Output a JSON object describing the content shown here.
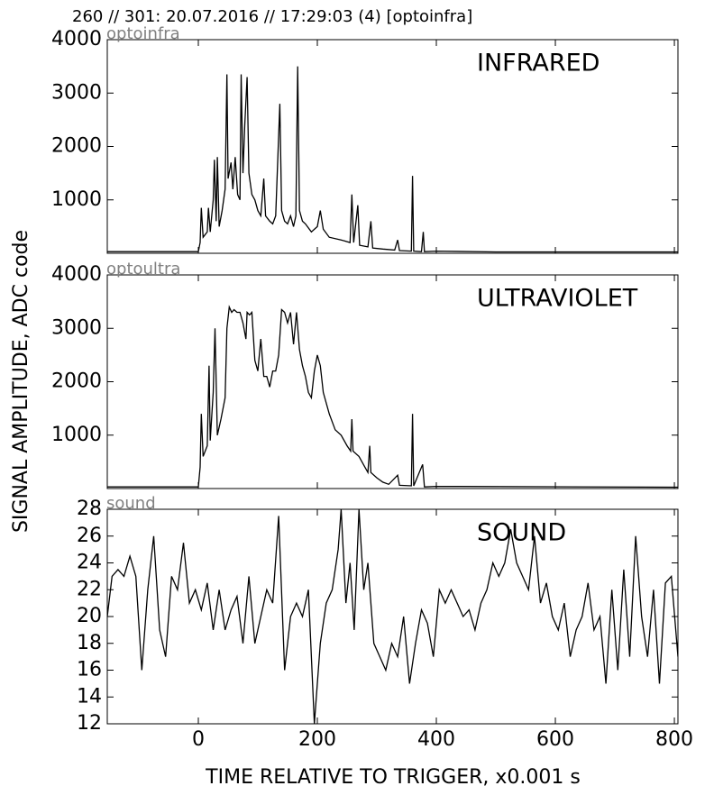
{
  "title": "260 // 301:   20.07.2016 // 17:29:03 (4)  [optoinfra]",
  "ylabel": "SIGNAL AMPLITUDE,  ADC code",
  "xlabel": "TIME RELATIVE TO TRIGGER,   x0.001 s",
  "chart_data": [
    {
      "type": "line",
      "label": "optoinfra",
      "annotation": "INFRARED",
      "color": "#000000",
      "xlim": [
        -153,
        806
      ],
      "xticks": [
        0,
        200,
        400,
        600,
        800
      ],
      "ylim": [
        0,
        4000
      ],
      "yticks": [
        1000,
        2000,
        3000,
        4000
      ],
      "x": [
        -153,
        0,
        3,
        5,
        8,
        15,
        17,
        20,
        25,
        27,
        30,
        32,
        35,
        40,
        45,
        48,
        50,
        55,
        58,
        62,
        66,
        70,
        72,
        75,
        78,
        82,
        85,
        90,
        95,
        100,
        105,
        110,
        113,
        120,
        125,
        130,
        137,
        140,
        145,
        150,
        155,
        160,
        164,
        167,
        170,
        175,
        180,
        190,
        200,
        205,
        210,
        220,
        240,
        255,
        258,
        261,
        268,
        271,
        285,
        290,
        293,
        310,
        330,
        335,
        338,
        358,
        360,
        362,
        375,
        378,
        380,
        400,
        500,
        806
      ],
      "values": [
        30,
        30,
        200,
        850,
        300,
        400,
        850,
        400,
        1000,
        1750,
        600,
        1800,
        500,
        800,
        1200,
        3350,
        1400,
        1700,
        1200,
        1800,
        1100,
        1000,
        3350,
        1500,
        2400,
        3300,
        1500,
        1100,
        1000,
        800,
        700,
        1400,
        700,
        600,
        550,
        700,
        2800,
        800,
        600,
        550,
        700,
        500,
        700,
        3500,
        800,
        600,
        550,
        400,
        500,
        800,
        450,
        300,
        250,
        200,
        1100,
        200,
        900,
        150,
        120,
        600,
        100,
        80,
        60,
        250,
        50,
        40,
        1450,
        40,
        30,
        400,
        30,
        40,
        25,
        25
      ]
    },
    {
      "type": "line",
      "label": "optoultra",
      "annotation": "ULTRAVIOLET",
      "color": "#000000",
      "xlim": [
        -153,
        806
      ],
      "xticks": [
        0,
        200,
        400,
        600,
        800
      ],
      "ylim": [
        0,
        4000
      ],
      "yticks": [
        1000,
        2000,
        3000,
        4000
      ],
      "x": [
        -153,
        0,
        3,
        5,
        8,
        15,
        18,
        20,
        25,
        28,
        32,
        38,
        45,
        48,
        52,
        56,
        60,
        65,
        70,
        75,
        80,
        82,
        86,
        90,
        95,
        100,
        105,
        110,
        115,
        120,
        125,
        130,
        135,
        140,
        145,
        150,
        155,
        160,
        165,
        170,
        175,
        180,
        185,
        190,
        195,
        200,
        205,
        210,
        220,
        230,
        240,
        250,
        256,
        258,
        260,
        270,
        280,
        285,
        288,
        290,
        300,
        310,
        320,
        335,
        338,
        358,
        360,
        362,
        377,
        380,
        400,
        806
      ],
      "values": [
        30,
        30,
        400,
        1400,
        600,
        800,
        2300,
        900,
        1800,
        3000,
        1000,
        1300,
        1700,
        3000,
        3400,
        3300,
        3350,
        3300,
        3300,
        3100,
        2800,
        3300,
        3250,
        3300,
        2400,
        2200,
        2800,
        2100,
        2100,
        1900,
        2200,
        2200,
        2500,
        3350,
        3300,
        3100,
        3300,
        2700,
        3300,
        2600,
        2300,
        2100,
        1800,
        1700,
        2200,
        2500,
        2300,
        1800,
        1400,
        1100,
        1000,
        800,
        700,
        1300,
        700,
        600,
        400,
        300,
        800,
        300,
        200,
        120,
        80,
        250,
        60,
        50,
        1400,
        50,
        450,
        30,
        40,
        25
      ]
    },
    {
      "type": "line",
      "label": "sound",
      "annotation": "SOUND",
      "color": "#000000",
      "xlim": [
        -153,
        806
      ],
      "xticks": [
        0,
        200,
        400,
        600,
        800
      ],
      "ylim": [
        12,
        28
      ],
      "yticks": [
        12,
        14,
        16,
        18,
        20,
        22,
        24,
        26,
        28
      ],
      "x": [
        -153,
        -145,
        -135,
        -125,
        -115,
        -105,
        -95,
        -85,
        -75,
        -65,
        -55,
        -45,
        -35,
        -25,
        -15,
        -5,
        5,
        15,
        25,
        35,
        45,
        55,
        65,
        75,
        85,
        95,
        105,
        115,
        125,
        135,
        145,
        155,
        165,
        175,
        185,
        195,
        205,
        215,
        225,
        235,
        240,
        248,
        255,
        262,
        270,
        278,
        285,
        295,
        305,
        315,
        325,
        335,
        345,
        355,
        365,
        375,
        385,
        395,
        405,
        415,
        425,
        435,
        445,
        455,
        465,
        475,
        485,
        495,
        505,
        515,
        525,
        535,
        545,
        555,
        565,
        575,
        585,
        595,
        605,
        615,
        625,
        635,
        645,
        655,
        665,
        675,
        685,
        695,
        705,
        715,
        725,
        735,
        745,
        755,
        765,
        775,
        785,
        795,
        806
      ],
      "values": [
        20,
        23,
        23.5,
        23,
        24.5,
        23,
        16,
        22,
        26,
        19,
        17,
        23,
        22,
        25.5,
        21,
        22,
        20.5,
        22.5,
        19,
        22,
        19,
        20.5,
        21.5,
        18,
        23,
        18,
        20,
        22,
        21,
        27.5,
        16,
        20,
        21,
        20,
        22,
        12,
        18,
        21,
        22,
        25,
        28,
        21,
        24,
        19,
        28,
        22,
        24,
        18,
        17,
        16,
        18,
        17,
        20,
        15,
        18,
        20.5,
        19.5,
        17,
        22,
        21,
        22,
        21,
        20,
        20.5,
        19,
        21,
        22,
        24,
        23,
        24,
        26.5,
        24,
        23,
        22,
        26,
        21,
        22.5,
        20,
        19,
        21,
        17,
        19,
        20,
        22.5,
        19,
        20,
        15,
        22,
        16,
        23.5,
        17,
        26,
        20,
        17,
        22,
        15,
        22.5,
        23,
        17
      ]
    }
  ]
}
